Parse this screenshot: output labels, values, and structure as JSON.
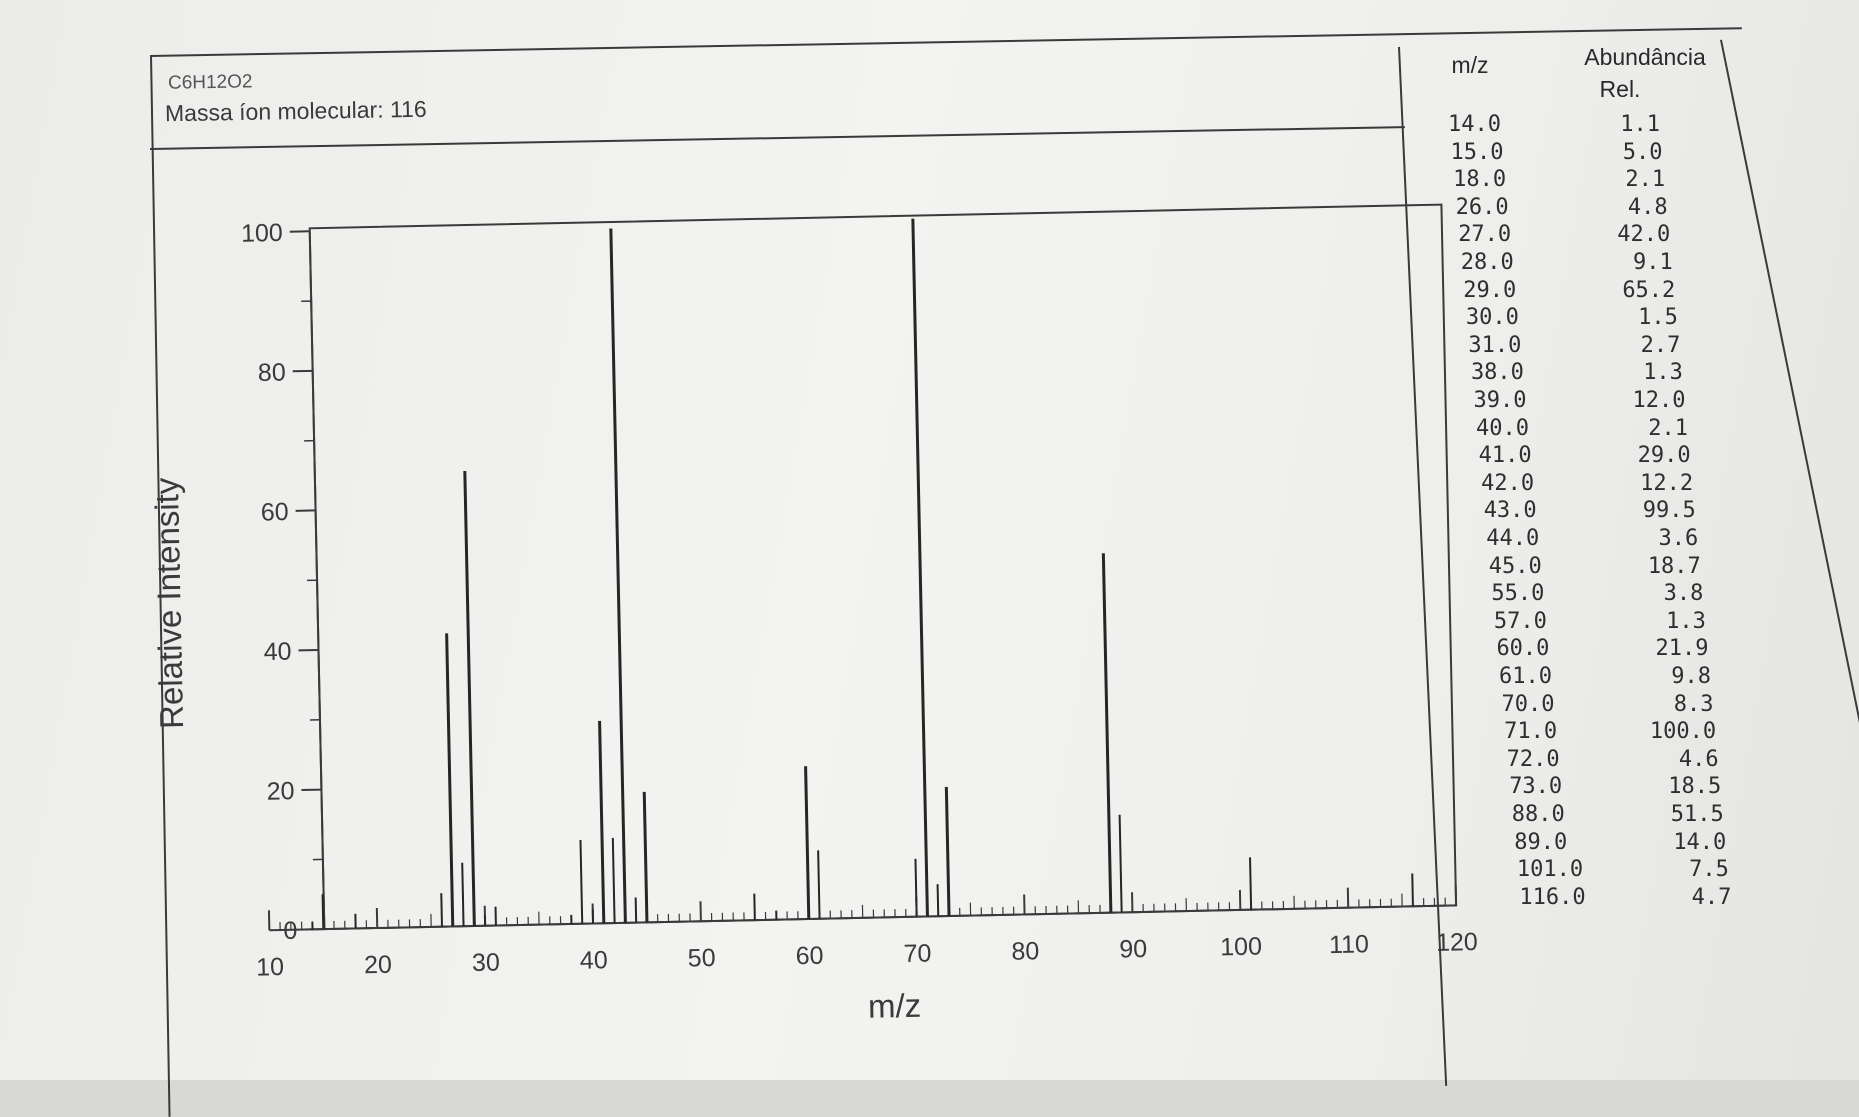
{
  "header": {
    "formula": "C6H12O2",
    "molecular_ion_label": "Massa íon molecular: 116"
  },
  "table": {
    "col_mz": "m/z",
    "col_abund_line1": "Abundância",
    "col_abund_line2": "Rel.",
    "rows": [
      {
        "mz": "14.0",
        "ab": "1.1"
      },
      {
        "mz": "15.0",
        "ab": "5.0"
      },
      {
        "mz": "18.0",
        "ab": "2.1"
      },
      {
        "mz": "26.0",
        "ab": "4.8"
      },
      {
        "mz": "27.0",
        "ab": "42.0"
      },
      {
        "mz": "28.0",
        "ab": "9.1"
      },
      {
        "mz": "29.0",
        "ab": "65.2"
      },
      {
        "mz": "30.0",
        "ab": "1.5"
      },
      {
        "mz": "31.0",
        "ab": "2.7"
      },
      {
        "mz": "38.0",
        "ab": "1.3"
      },
      {
        "mz": "39.0",
        "ab": "12.0"
      },
      {
        "mz": "40.0",
        "ab": "2.1"
      },
      {
        "mz": "41.0",
        "ab": "29.0"
      },
      {
        "mz": "42.0",
        "ab": "12.2"
      },
      {
        "mz": "43.0",
        "ab": "99.5"
      },
      {
        "mz": "44.0",
        "ab": "3.6"
      },
      {
        "mz": "45.0",
        "ab": "18.7"
      },
      {
        "mz": "55.0",
        "ab": "3.8"
      },
      {
        "mz": "57.0",
        "ab": "1.3"
      },
      {
        "mz": "60.0",
        "ab": "21.9"
      },
      {
        "mz": "61.0",
        "ab": "9.8"
      },
      {
        "mz": "70.0",
        "ab": "8.3"
      },
      {
        "mz": "71.0",
        "ab": "100.0"
      },
      {
        "mz": "72.0",
        "ab": "4.6"
      },
      {
        "mz": "73.0",
        "ab": "18.5"
      },
      {
        "mz": "88.0",
        "ab": "51.5"
      },
      {
        "mz": "89.0",
        "ab": "14.0"
      },
      {
        "mz": "101.0",
        "ab": "7.5"
      },
      {
        "mz": "116.0",
        "ab": "4.7"
      }
    ]
  },
  "chart_data": {
    "type": "bar",
    "title": "",
    "xlabel": "m/z",
    "ylabel": "Relative Intensity",
    "xlim": [
      10,
      120
    ],
    "ylim": [
      0,
      100
    ],
    "x_ticks": [
      "10",
      "20",
      "30",
      "40",
      "50",
      "60",
      "70",
      "80",
      "90",
      "100",
      "110",
      "120"
    ],
    "y_ticks": [
      "0",
      "20",
      "40",
      "60",
      "80",
      "100"
    ],
    "grid": false,
    "x": [
      14,
      15,
      18,
      26,
      27,
      28,
      29,
      30,
      31,
      38,
      39,
      40,
      41,
      42,
      43,
      44,
      45,
      55,
      57,
      60,
      61,
      70,
      71,
      72,
      73,
      88,
      89,
      101,
      116
    ],
    "values": [
      1.1,
      5.0,
      2.1,
      4.8,
      42.0,
      9.1,
      65.2,
      1.5,
      2.7,
      1.3,
      12.0,
      2.1,
      29.0,
      12.2,
      99.5,
      3.6,
      18.7,
      3.8,
      1.3,
      21.9,
      9.8,
      8.3,
      100.0,
      4.6,
      18.5,
      51.5,
      14.0,
      7.5,
      4.7
    ]
  }
}
